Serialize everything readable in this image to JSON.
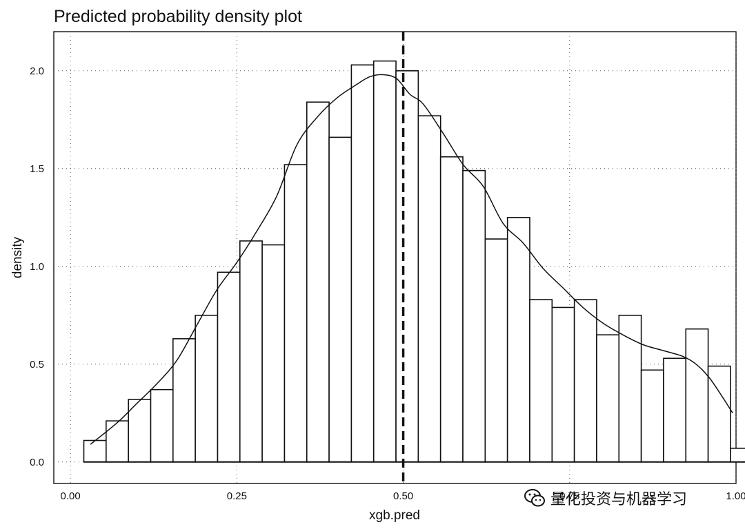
{
  "chart_data": {
    "type": "histogram",
    "title": "Predicted probability density plot",
    "xlabel": "xgb.pred",
    "ylabel": "density",
    "xlim": [
      -0.025,
      1.0
    ],
    "ylim": [
      -0.11,
      2.2
    ],
    "x_ticks": [
      "0.00",
      "0.25",
      "0.50",
      "0.75",
      "1.00"
    ],
    "x_tick_values": [
      0.0,
      0.25,
      0.5,
      0.75,
      1.0
    ],
    "y_ticks": [
      "0.0",
      "0.5",
      "1.0",
      "1.5",
      "2.0"
    ],
    "y_tick_values": [
      0.0,
      0.5,
      1.0,
      1.5,
      2.0
    ],
    "bin_width": 0.0335,
    "bins": [
      {
        "x0": 0.0201,
        "x1": 0.0536,
        "density": 0.11
      },
      {
        "x0": 0.0536,
        "x1": 0.0871,
        "density": 0.21
      },
      {
        "x0": 0.0871,
        "x1": 0.1206,
        "density": 0.32
      },
      {
        "x0": 0.1206,
        "x1": 0.1541,
        "density": 0.37
      },
      {
        "x0": 0.1541,
        "x1": 0.1876,
        "density": 0.63
      },
      {
        "x0": 0.1876,
        "x1": 0.2211,
        "density": 0.75
      },
      {
        "x0": 0.2211,
        "x1": 0.2546,
        "density": 0.97
      },
      {
        "x0": 0.2546,
        "x1": 0.2881,
        "density": 1.13
      },
      {
        "x0": 0.2881,
        "x1": 0.3216,
        "density": 1.11
      },
      {
        "x0": 0.3216,
        "x1": 0.3551,
        "density": 1.52
      },
      {
        "x0": 0.3551,
        "x1": 0.3886,
        "density": 1.84
      },
      {
        "x0": 0.3886,
        "x1": 0.4221,
        "density": 1.66
      },
      {
        "x0": 0.4221,
        "x1": 0.4556,
        "density": 2.03
      },
      {
        "x0": 0.4556,
        "x1": 0.4891,
        "density": 2.05
      },
      {
        "x0": 0.4891,
        "x1": 0.5226,
        "density": 2.0
      },
      {
        "x0": 0.5226,
        "x1": 0.5561,
        "density": 1.77
      },
      {
        "x0": 0.5561,
        "x1": 0.5896,
        "density": 1.56
      },
      {
        "x0": 0.5896,
        "x1": 0.6231,
        "density": 1.49
      },
      {
        "x0": 0.6231,
        "x1": 0.6566,
        "density": 1.14
      },
      {
        "x0": 0.6566,
        "x1": 0.6901,
        "density": 1.25
      },
      {
        "x0": 0.6901,
        "x1": 0.7236,
        "density": 0.83
      },
      {
        "x0": 0.7236,
        "x1": 0.7571,
        "density": 0.79
      },
      {
        "x0": 0.7571,
        "x1": 0.7906,
        "density": 0.83
      },
      {
        "x0": 0.7906,
        "x1": 0.8241,
        "density": 0.65
      },
      {
        "x0": 0.8241,
        "x1": 0.8576,
        "density": 0.75
      },
      {
        "x0": 0.8576,
        "x1": 0.8911,
        "density": 0.47
      },
      {
        "x0": 0.8911,
        "x1": 0.9246,
        "density": 0.53
      },
      {
        "x0": 0.9246,
        "x1": 0.9581,
        "density": 0.68
      },
      {
        "x0": 0.9581,
        "x1": 0.9916,
        "density": 0.49
      },
      {
        "x0": 0.9916,
        "x1": 1.0251,
        "density": 0.07
      }
    ],
    "density_curve": [
      [
        0.03,
        0.09
      ],
      [
        0.07,
        0.2
      ],
      [
        0.1,
        0.3
      ],
      [
        0.13,
        0.4
      ],
      [
        0.16,
        0.52
      ],
      [
        0.19,
        0.7
      ],
      [
        0.22,
        0.88
      ],
      [
        0.25,
        1.02
      ],
      [
        0.28,
        1.18
      ],
      [
        0.31,
        1.36
      ],
      [
        0.34,
        1.62
      ],
      [
        0.37,
        1.76
      ],
      [
        0.4,
        1.86
      ],
      [
        0.43,
        1.93
      ],
      [
        0.45,
        1.97
      ],
      [
        0.47,
        1.98
      ],
      [
        0.49,
        1.96
      ],
      [
        0.51,
        1.88
      ],
      [
        0.53,
        1.83
      ],
      [
        0.56,
        1.68
      ],
      [
        0.59,
        1.52
      ],
      [
        0.62,
        1.41
      ],
      [
        0.65,
        1.22
      ],
      [
        0.68,
        1.12
      ],
      [
        0.71,
        0.99
      ],
      [
        0.74,
        0.89
      ],
      [
        0.77,
        0.79
      ],
      [
        0.8,
        0.71
      ],
      [
        0.83,
        0.65
      ],
      [
        0.86,
        0.6
      ],
      [
        0.89,
        0.57
      ],
      [
        0.92,
        0.54
      ],
      [
        0.94,
        0.5
      ],
      [
        0.96,
        0.43
      ],
      [
        0.98,
        0.33
      ],
      [
        0.995,
        0.25
      ]
    ],
    "threshold_line": {
      "x": 0.5,
      "style": "dashed"
    },
    "grid": "dotted",
    "legend": "none"
  },
  "watermark": {
    "text": "量化投资与机器学习",
    "icon": "wechat-icon"
  }
}
